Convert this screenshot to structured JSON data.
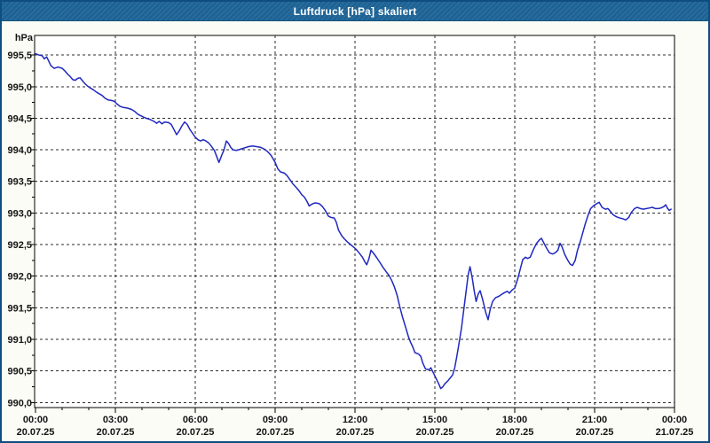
{
  "window": {
    "title": "Luftdruck [hPa] skaliert"
  },
  "colors": {
    "frame": "#0e4d80",
    "titlebar_bg": "#1d6497",
    "titlebar_text": "#ffffff",
    "content_bg": "#fbfcf5",
    "plot_bg": "#ffffff",
    "plot_border": "#000000",
    "grid": "#2e2e2e",
    "tick": "#000000",
    "line": "#2028c0",
    "label_text": "#141414"
  },
  "chart_data": {
    "type": "line",
    "title": "Luftdruck [hPa] skaliert",
    "ylabel": "hPa",
    "xlabel": "",
    "grid": "dashed",
    "legend": "none",
    "xlim_hours": [
      0,
      24
    ],
    "ylim": [
      989.92,
      995.81
    ],
    "y_ticks": [
      {
        "value": 990.0,
        "label": "990,0"
      },
      {
        "value": 990.5,
        "label": "990,5"
      },
      {
        "value": 991.0,
        "label": "991,0"
      },
      {
        "value": 991.5,
        "label": "991,5"
      },
      {
        "value": 992.0,
        "label": "992,0"
      },
      {
        "value": 992.5,
        "label": "992,5"
      },
      {
        "value": 993.0,
        "label": "993,0"
      },
      {
        "value": 993.5,
        "label": "993,5"
      },
      {
        "value": 994.0,
        "label": "994,0"
      },
      {
        "value": 994.5,
        "label": "994,5"
      },
      {
        "value": 995.0,
        "label": "995,0"
      },
      {
        "value": 995.5,
        "label": "995,5"
      }
    ],
    "y_minor_step": 0.25,
    "x_major_ticks": [
      {
        "hour": 0,
        "time": "00:00",
        "date": "20.07.25"
      },
      {
        "hour": 3,
        "time": "03:00",
        "date": "20.07.25"
      },
      {
        "hour": 6,
        "time": "06:00",
        "date": "20.07.25"
      },
      {
        "hour": 9,
        "time": "09:00",
        "date": "20.07.25"
      },
      {
        "hour": 12,
        "time": "12:00",
        "date": "20.07.25"
      },
      {
        "hour": 15,
        "time": "15:00",
        "date": "20.07.25"
      },
      {
        "hour": 18,
        "time": "18:00",
        "date": "20.07.25"
      },
      {
        "hour": 21,
        "time": "21:00",
        "date": "20.07.25"
      },
      {
        "hour": 24,
        "time": "00:00",
        "date": "21.07.25"
      }
    ],
    "x_minor_step_hours": 1,
    "series": [
      {
        "name": "Luftdruck",
        "unit": "hPa",
        "color": "#2028c0",
        "points": [
          [
            0.0,
            995.52
          ],
          [
            0.13,
            995.5
          ],
          [
            0.25,
            995.49
          ],
          [
            0.33,
            995.44
          ],
          [
            0.42,
            995.47
          ],
          [
            0.5,
            995.4
          ],
          [
            0.58,
            995.33
          ],
          [
            0.7,
            995.29
          ],
          [
            0.85,
            995.31
          ],
          [
            1.0,
            995.29
          ],
          [
            1.1,
            995.25
          ],
          [
            1.2,
            995.2
          ],
          [
            1.3,
            995.16
          ],
          [
            1.4,
            995.11
          ],
          [
            1.5,
            995.1
          ],
          [
            1.58,
            995.13
          ],
          [
            1.67,
            995.14
          ],
          [
            1.75,
            995.1
          ],
          [
            1.85,
            995.05
          ],
          [
            1.95,
            995.01
          ],
          [
            2.05,
            994.98
          ],
          [
            2.17,
            994.95
          ],
          [
            2.3,
            994.91
          ],
          [
            2.42,
            994.88
          ],
          [
            2.5,
            994.86
          ],
          [
            2.6,
            994.82
          ],
          [
            2.72,
            994.79
          ],
          [
            2.85,
            994.78
          ],
          [
            2.95,
            994.77
          ],
          [
            3.05,
            994.73
          ],
          [
            3.17,
            994.69
          ],
          [
            3.3,
            994.67
          ],
          [
            3.45,
            994.66
          ],
          [
            3.6,
            994.64
          ],
          [
            3.72,
            994.61
          ],
          [
            3.85,
            994.56
          ],
          [
            4.0,
            994.53
          ],
          [
            4.15,
            994.5
          ],
          [
            4.3,
            994.48
          ],
          [
            4.45,
            994.45
          ],
          [
            4.55,
            994.42
          ],
          [
            4.65,
            994.45
          ],
          [
            4.75,
            994.41
          ],
          [
            4.85,
            994.44
          ],
          [
            5.0,
            994.43
          ],
          [
            5.1,
            994.4
          ],
          [
            5.2,
            994.32
          ],
          [
            5.3,
            994.24
          ],
          [
            5.4,
            994.3
          ],
          [
            5.5,
            994.38
          ],
          [
            5.6,
            994.44
          ],
          [
            5.7,
            994.4
          ],
          [
            5.8,
            994.32
          ],
          [
            5.9,
            994.26
          ],
          [
            6.0,
            994.2
          ],
          [
            6.1,
            994.16
          ],
          [
            6.2,
            994.14
          ],
          [
            6.3,
            994.16
          ],
          [
            6.4,
            994.14
          ],
          [
            6.5,
            994.11
          ],
          [
            6.6,
            994.06
          ],
          [
            6.72,
            993.99
          ],
          [
            6.8,
            993.9
          ],
          [
            6.89,
            993.8
          ],
          [
            7.0,
            993.92
          ],
          [
            7.08,
            994.0
          ],
          [
            7.17,
            994.14
          ],
          [
            7.25,
            994.1
          ],
          [
            7.33,
            994.04
          ],
          [
            7.42,
            994.0
          ],
          [
            7.55,
            993.99
          ],
          [
            7.7,
            994.01
          ],
          [
            7.85,
            994.03
          ],
          [
            8.0,
            994.05
          ],
          [
            8.15,
            994.06
          ],
          [
            8.3,
            994.05
          ],
          [
            8.45,
            994.04
          ],
          [
            8.6,
            994.01
          ],
          [
            8.72,
            993.97
          ],
          [
            8.85,
            993.91
          ],
          [
            9.0,
            993.8
          ],
          [
            9.1,
            993.7
          ],
          [
            9.2,
            993.65
          ],
          [
            9.35,
            993.63
          ],
          [
            9.45,
            993.59
          ],
          [
            9.55,
            993.53
          ],
          [
            9.67,
            993.46
          ],
          [
            9.8,
            993.4
          ],
          [
            9.9,
            993.35
          ],
          [
            10.0,
            993.29
          ],
          [
            10.1,
            993.25
          ],
          [
            10.2,
            993.18
          ],
          [
            10.28,
            993.11
          ],
          [
            10.38,
            993.14
          ],
          [
            10.5,
            993.16
          ],
          [
            10.65,
            993.15
          ],
          [
            10.78,
            993.1
          ],
          [
            10.88,
            993.04
          ],
          [
            11.0,
            992.95
          ],
          [
            11.1,
            992.93
          ],
          [
            11.22,
            992.92
          ],
          [
            11.3,
            992.85
          ],
          [
            11.38,
            992.73
          ],
          [
            11.5,
            992.64
          ],
          [
            11.6,
            992.59
          ],
          [
            11.72,
            992.54
          ],
          [
            11.83,
            992.5
          ],
          [
            11.95,
            992.46
          ],
          [
            12.05,
            992.42
          ],
          [
            12.15,
            992.37
          ],
          [
            12.28,
            992.3
          ],
          [
            12.38,
            992.22
          ],
          [
            12.44,
            992.18
          ],
          [
            12.52,
            992.27
          ],
          [
            12.6,
            992.41
          ],
          [
            12.7,
            992.36
          ],
          [
            12.82,
            992.29
          ],
          [
            12.93,
            992.22
          ],
          [
            13.05,
            992.14
          ],
          [
            13.17,
            992.07
          ],
          [
            13.28,
            992.01
          ],
          [
            13.38,
            991.93
          ],
          [
            13.48,
            991.83
          ],
          [
            13.58,
            991.7
          ],
          [
            13.68,
            991.52
          ],
          [
            13.78,
            991.36
          ],
          [
            13.88,
            991.22
          ],
          [
            14.0,
            991.05
          ],
          [
            14.08,
            990.96
          ],
          [
            14.17,
            990.88
          ],
          [
            14.25,
            990.79
          ],
          [
            14.38,
            990.77
          ],
          [
            14.47,
            990.73
          ],
          [
            14.55,
            990.62
          ],
          [
            14.65,
            990.53
          ],
          [
            14.78,
            990.52
          ],
          [
            14.85,
            990.55
          ],
          [
            14.92,
            990.49
          ],
          [
            15.0,
            990.42
          ],
          [
            15.08,
            990.35
          ],
          [
            15.15,
            990.29
          ],
          [
            15.22,
            990.22
          ],
          [
            15.3,
            990.25
          ],
          [
            15.38,
            990.3
          ],
          [
            15.48,
            990.34
          ],
          [
            15.58,
            990.39
          ],
          [
            15.67,
            990.44
          ],
          [
            15.75,
            990.56
          ],
          [
            15.82,
            990.72
          ],
          [
            15.9,
            990.92
          ],
          [
            16.0,
            991.18
          ],
          [
            16.08,
            991.45
          ],
          [
            16.17,
            991.75
          ],
          [
            16.25,
            992.02
          ],
          [
            16.32,
            992.15
          ],
          [
            16.4,
            991.98
          ],
          [
            16.48,
            991.76
          ],
          [
            16.55,
            991.6
          ],
          [
            16.63,
            991.72
          ],
          [
            16.7,
            991.77
          ],
          [
            16.8,
            991.62
          ],
          [
            16.9,
            991.44
          ],
          [
            17.0,
            991.31
          ],
          [
            17.08,
            991.48
          ],
          [
            17.17,
            991.6
          ],
          [
            17.28,
            991.66
          ],
          [
            17.4,
            991.68
          ],
          [
            17.5,
            991.71
          ],
          [
            17.62,
            991.74
          ],
          [
            17.72,
            991.76
          ],
          [
            17.8,
            991.73
          ],
          [
            17.9,
            991.78
          ],
          [
            18.0,
            991.81
          ],
          [
            18.1,
            991.94
          ],
          [
            18.2,
            992.1
          ],
          [
            18.3,
            992.26
          ],
          [
            18.4,
            992.3
          ],
          [
            18.48,
            992.28
          ],
          [
            18.58,
            992.3
          ],
          [
            18.7,
            992.42
          ],
          [
            18.82,
            992.52
          ],
          [
            18.92,
            992.57
          ],
          [
            19.0,
            992.6
          ],
          [
            19.1,
            992.52
          ],
          [
            19.2,
            992.44
          ],
          [
            19.3,
            992.37
          ],
          [
            19.42,
            992.35
          ],
          [
            19.52,
            992.37
          ],
          [
            19.62,
            992.41
          ],
          [
            19.7,
            992.52
          ],
          [
            19.78,
            992.46
          ],
          [
            19.88,
            992.34
          ],
          [
            19.98,
            992.26
          ],
          [
            20.08,
            992.19
          ],
          [
            20.17,
            992.17
          ],
          [
            20.27,
            992.25
          ],
          [
            20.35,
            992.4
          ],
          [
            20.45,
            992.53
          ],
          [
            20.55,
            992.68
          ],
          [
            20.65,
            992.83
          ],
          [
            20.75,
            992.96
          ],
          [
            20.85,
            993.07
          ],
          [
            20.95,
            993.11
          ],
          [
            21.05,
            993.14
          ],
          [
            21.17,
            993.17
          ],
          [
            21.28,
            993.09
          ],
          [
            21.4,
            993.06
          ],
          [
            21.5,
            993.07
          ],
          [
            21.6,
            993.02
          ],
          [
            21.7,
            992.97
          ],
          [
            21.82,
            992.94
          ],
          [
            21.95,
            992.92
          ],
          [
            22.05,
            992.91
          ],
          [
            22.17,
            992.89
          ],
          [
            22.28,
            992.93
          ],
          [
            22.38,
            993.01
          ],
          [
            22.5,
            993.07
          ],
          [
            22.6,
            993.09
          ],
          [
            22.72,
            993.07
          ],
          [
            22.83,
            993.06
          ],
          [
            22.95,
            993.07
          ],
          [
            23.07,
            993.08
          ],
          [
            23.17,
            993.09
          ],
          [
            23.28,
            993.07
          ],
          [
            23.4,
            993.07
          ],
          [
            23.5,
            993.08
          ],
          [
            23.6,
            993.1
          ],
          [
            23.67,
            993.13
          ],
          [
            23.73,
            993.08
          ],
          [
            23.8,
            993.04
          ],
          [
            23.87,
            993.06
          ]
        ]
      }
    ]
  }
}
